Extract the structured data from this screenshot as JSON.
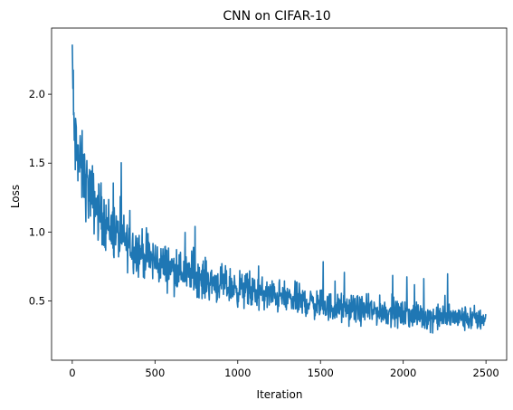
{
  "chart_data": {
    "type": "line",
    "title": "CNN on CIFAR-10",
    "xlabel": "Iteration",
    "ylabel": "Loss",
    "xlim": [
      -125,
      2625
    ],
    "ylim": [
      0.07,
      2.48
    ],
    "x_ticks": [
      0,
      500,
      1000,
      1500,
      2000,
      2500
    ],
    "x_tick_labels": [
      "0",
      "500",
      "1000",
      "1500",
      "2000",
      "2500"
    ],
    "y_ticks": [
      0.5,
      1.0,
      1.5,
      2.0
    ],
    "y_tick_labels": [
      "0.5",
      "1.0",
      "1.5",
      "2.0"
    ],
    "grid": false,
    "legend": "none",
    "series_color": "#1f77b4",
    "series": [
      {
        "x": [
          0,
          5,
          10,
          20,
          30,
          50,
          75,
          100,
          150,
          200,
          250,
          300,
          400,
          500,
          600,
          700,
          800,
          900,
          1000,
          1100,
          1200,
          1300,
          1400,
          1500,
          1600,
          1700,
          1800,
          1900,
          2000,
          2100,
          2200,
          2300,
          2400,
          2500
        ],
        "values": [
          2.36,
          1.95,
          1.75,
          1.62,
          1.55,
          1.48,
          1.38,
          1.3,
          1.18,
          1.08,
          1.0,
          0.95,
          0.86,
          0.79,
          0.74,
          0.7,
          0.66,
          0.62,
          0.59,
          0.56,
          0.54,
          0.52,
          0.5,
          0.47,
          0.45,
          0.44,
          0.43,
          0.42,
          0.4,
          0.39,
          0.38,
          0.38,
          0.37,
          0.37
        ]
      }
    ]
  }
}
